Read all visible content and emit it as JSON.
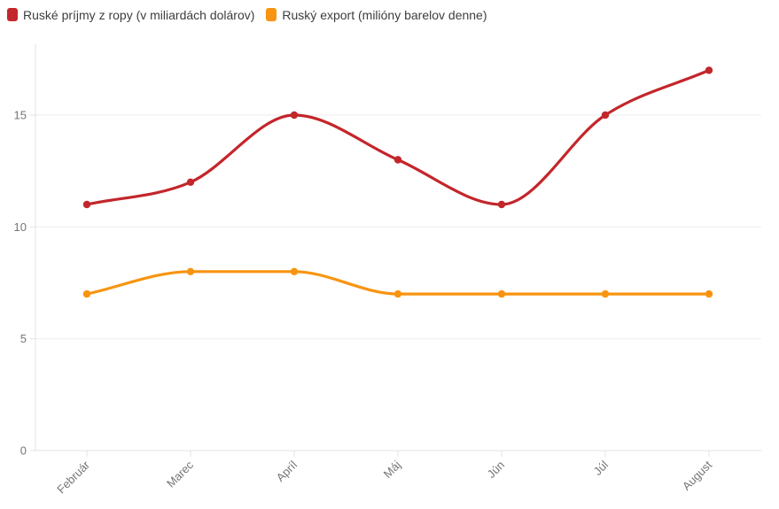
{
  "legend": {
    "items": [
      {
        "label": "Ruské príjmy z ropy (v miliardách dolárov)",
        "color": "#c3262b"
      },
      {
        "label": "Ruský export (milióny barelov denne)",
        "color": "#f8940f"
      }
    ]
  },
  "chart_data": {
    "type": "line",
    "categories": [
      "Február",
      "Marec",
      "Apríl",
      "Máj",
      "Jún",
      "Júl",
      "August"
    ],
    "series": [
      {
        "name": "Ruské príjmy z ropy (v miliardách dolárov)",
        "color": "#c3262b",
        "values": [
          11,
          12,
          15,
          13,
          11,
          15,
          17
        ]
      },
      {
        "name": "Ruský export (milióny barelov denne)",
        "color": "#f8940f",
        "values": [
          7,
          8,
          8,
          7,
          7,
          7,
          7
        ]
      }
    ],
    "title": "",
    "xlabel": "",
    "ylabel": "",
    "yticks": [
      0,
      5,
      10,
      15
    ],
    "ylim": [
      0,
      18.2
    ],
    "grid": true,
    "legend_position": "top-left",
    "curve": "monotone"
  },
  "style": {
    "background": "#ffffff",
    "grid_color": "#ededed",
    "axis_color": "#e3e3e3",
    "tick_label_color": "#757575",
    "legend_text_color": "#3d3d3d"
  }
}
